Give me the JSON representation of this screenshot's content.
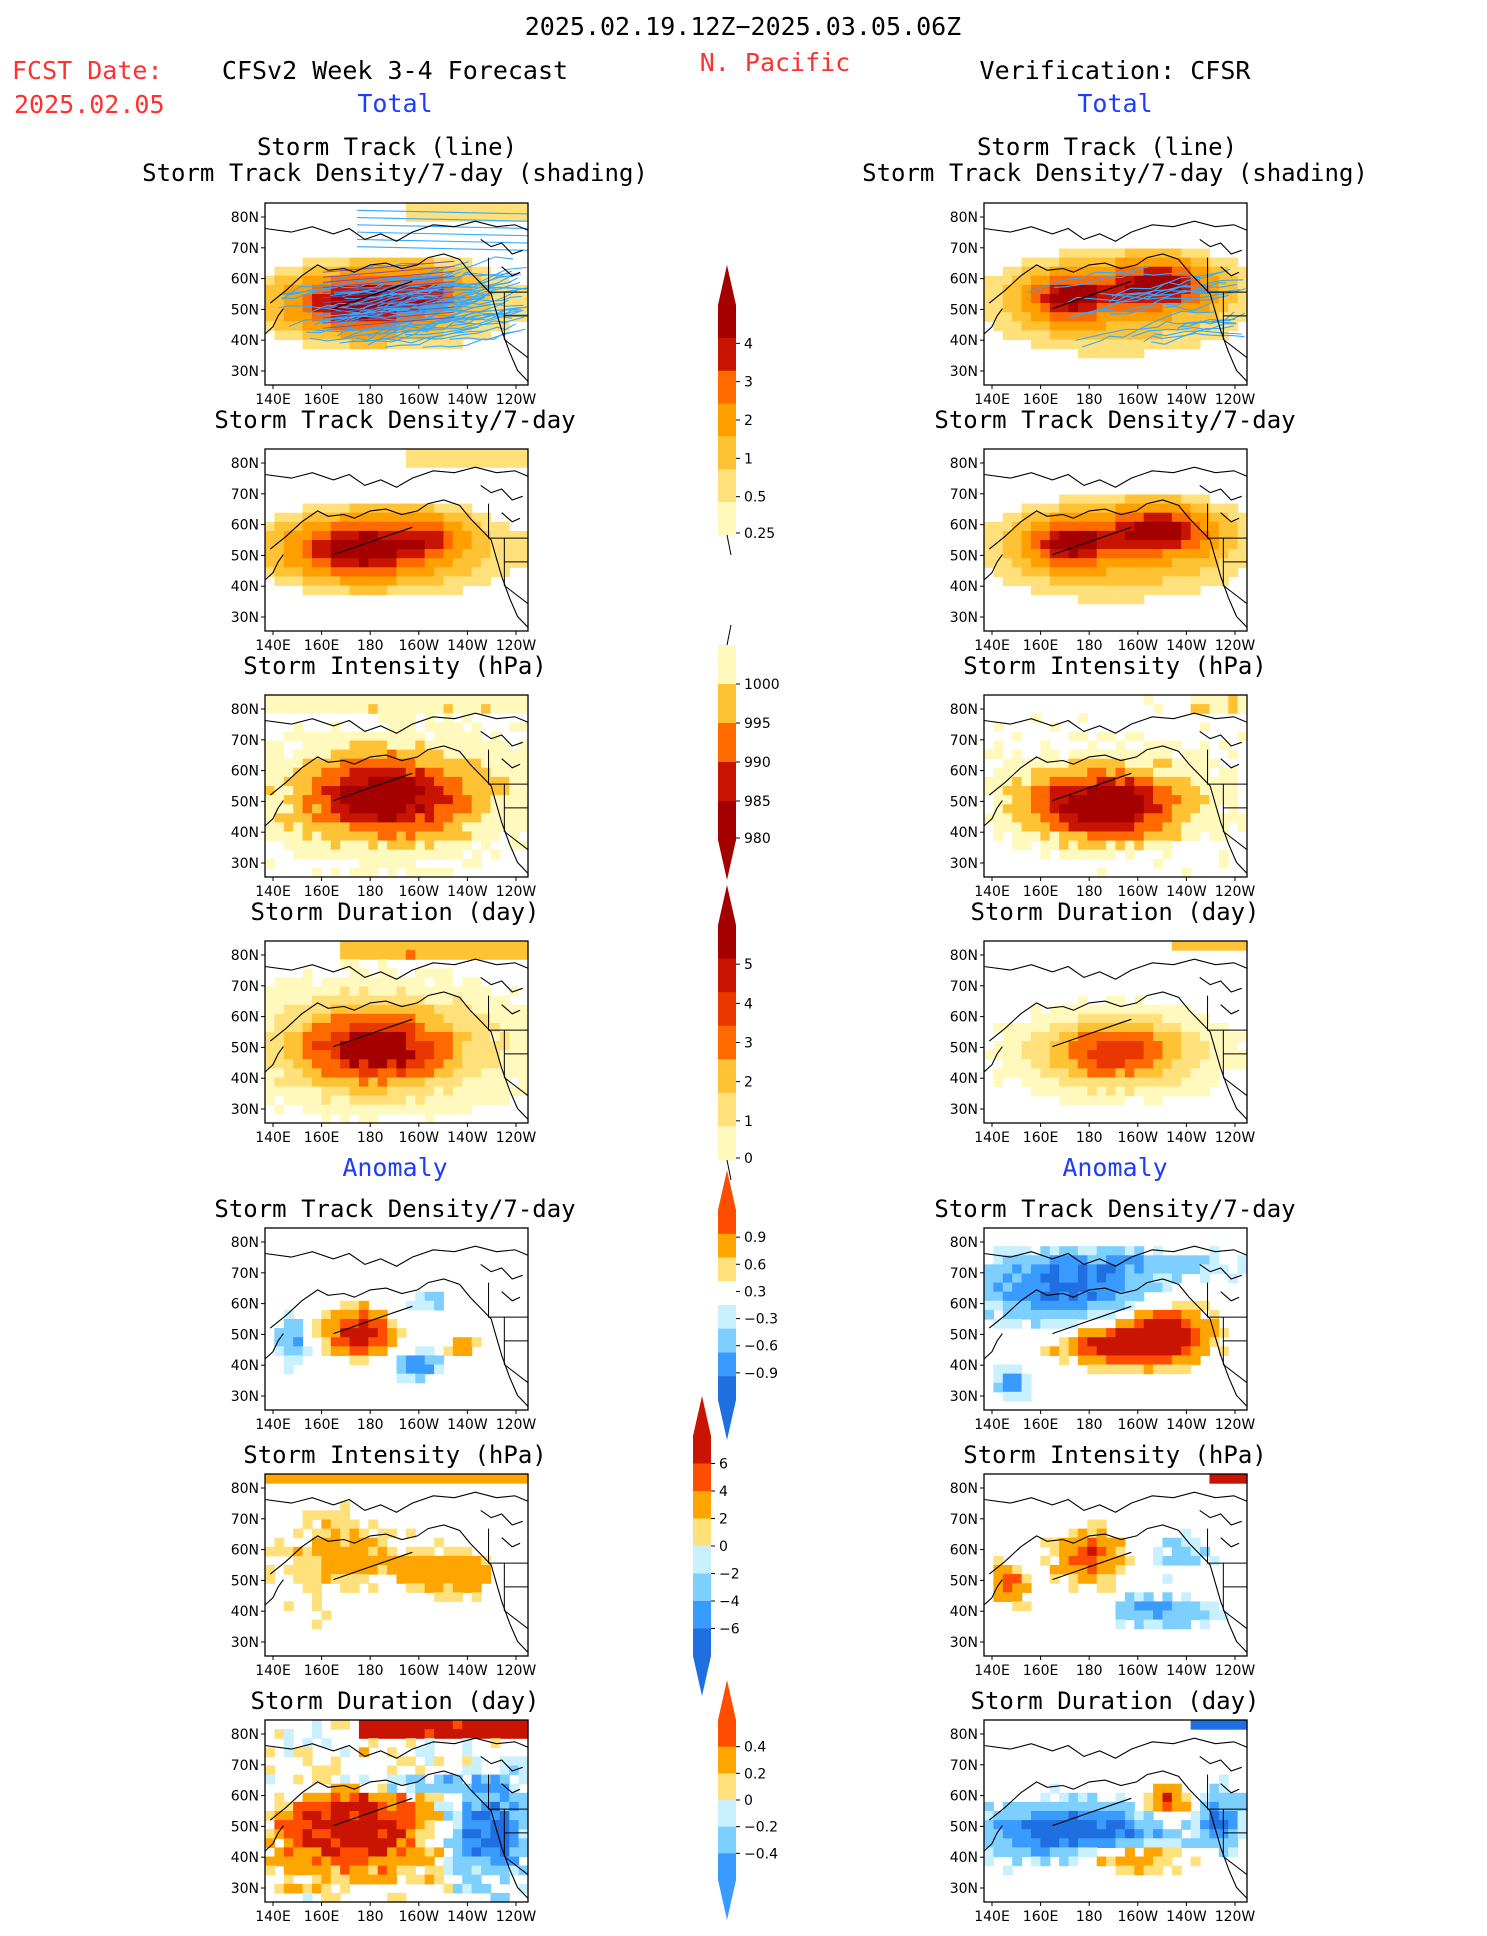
{
  "header": {
    "date_range": "2025.02.19.12Z−2025.03.05.06Z",
    "region": "N. Pacific",
    "fcst_label": "FCST Date:",
    "fcst_date": "2025.02.05",
    "model_title": "CFSv2 Week 3-4 Forecast",
    "verification_title": "Verification: CFSR",
    "total_label": "Total",
    "anomaly_label": "Anomaly"
  },
  "axes": {
    "lat_ticks": [
      "80N",
      "70N",
      "60N",
      "50N",
      "40N",
      "30N"
    ],
    "lon_ticks": [
      "140E",
      "160E",
      "180",
      "160W",
      "140W",
      "120W"
    ]
  },
  "panel_titles": {
    "storm_track_line": "Storm Track (line)",
    "storm_track_shading": "Storm Track Density/7-day (shading)",
    "density": "Storm Track Density/7-day",
    "intensity": "Storm Intensity (hPa)",
    "duration": "Storm Duration (day)"
  },
  "colorbars": {
    "density_total": [
      "4",
      "3",
      "2",
      "1",
      "0.5",
      "0.25"
    ],
    "intensity_total": [
      "1000",
      "995",
      "990",
      "985",
      "980"
    ],
    "duration_total": [
      "5",
      "4",
      "3",
      "2",
      "1",
      "0"
    ],
    "density_anom": [
      "0.9",
      "0.6",
      "0.3",
      "−0.3",
      "−0.6",
      "−0.9"
    ],
    "intensity_anom": [
      "6",
      "4",
      "2",
      "0",
      "−2",
      "−4",
      "−6"
    ],
    "duration_anom": [
      "0.4",
      "0.2",
      "0",
      "−0.2",
      "−0.4"
    ]
  },
  "colors": {
    "warm": [
      "#fff9bd",
      "#ffe07a",
      "#ffc235",
      "#ff9f00",
      "#ff6a00",
      "#e83800",
      "#c81400",
      "#a50000"
    ],
    "anom_pos": [
      "#ffe07a",
      "#ffa500",
      "#ff4d00",
      "#c81400"
    ],
    "anom_neg": [
      "#c8f0ff",
      "#7ccfff",
      "#3a9bff",
      "#1f6fe0"
    ],
    "track_line": "#33aaff",
    "title_red": "#ff3030",
    "title_blue": "#1e3cff"
  },
  "panels": [
    {
      "id": "fc-track",
      "row": 0,
      "col": "left",
      "title": "storm_track_shading",
      "kind": "density",
      "intensity": 3,
      "tracks": true
    },
    {
      "id": "ob-track",
      "row": 0,
      "col": "right",
      "title": "storm_track_shading",
      "kind": "density_obs",
      "intensity": 3,
      "tracks": true
    },
    {
      "id": "fc-density",
      "row": 1,
      "col": "left",
      "title": "density",
      "kind": "density",
      "intensity": 3
    },
    {
      "id": "ob-density",
      "row": 1,
      "col": "right",
      "title": "density",
      "kind": "density_obs",
      "intensity": 3
    },
    {
      "id": "fc-intensity",
      "row": 2,
      "col": "left",
      "title": "intensity",
      "kind": "intensity"
    },
    {
      "id": "ob-intensity",
      "row": 2,
      "col": "right",
      "title": "intensity",
      "kind": "intensity_obs"
    },
    {
      "id": "fc-duration",
      "row": 3,
      "col": "left",
      "title": "duration",
      "kind": "duration"
    },
    {
      "id": "ob-duration",
      "row": 3,
      "col": "right",
      "title": "duration",
      "kind": "duration_obs"
    },
    {
      "id": "fc-density-anom",
      "row": 4,
      "col": "left",
      "title": "density",
      "kind": "anom_density"
    },
    {
      "id": "ob-density-anom",
      "row": 4,
      "col": "right",
      "title": "density",
      "kind": "anom_density_obs"
    },
    {
      "id": "fc-intensity-anom",
      "row": 5,
      "col": "left",
      "title": "intensity",
      "kind": "anom_intensity"
    },
    {
      "id": "ob-intensity-anom",
      "row": 5,
      "col": "right",
      "title": "intensity",
      "kind": "anom_intensity_obs"
    },
    {
      "id": "fc-duration-anom",
      "row": 6,
      "col": "left",
      "title": "duration",
      "kind": "anom_duration"
    },
    {
      "id": "ob-duration-anom",
      "row": 6,
      "col": "right",
      "title": "duration",
      "kind": "anom_duration_obs"
    }
  ]
}
